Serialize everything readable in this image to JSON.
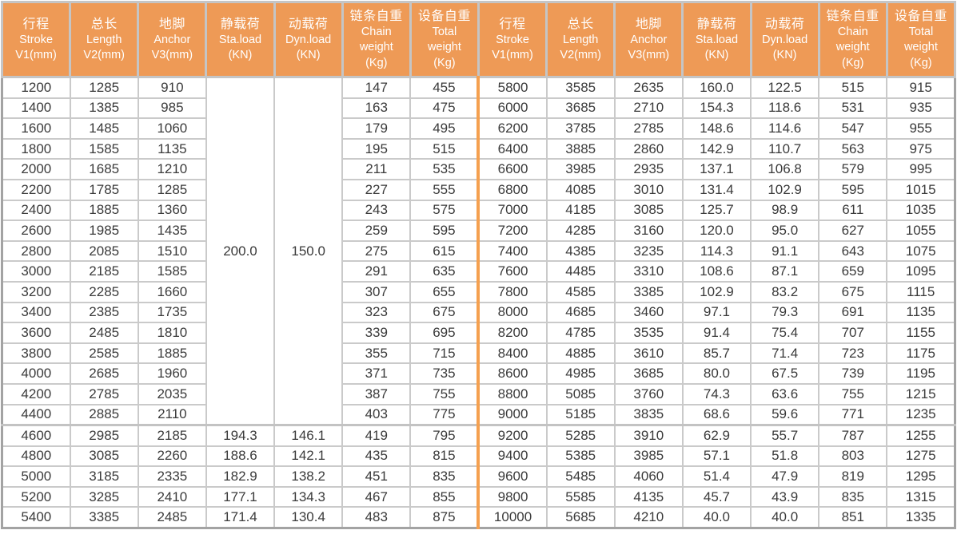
{
  "colors": {
    "header_background": "#EE9A56",
    "header_text": "#FFFFFF",
    "divider_orange": "#F5A04F",
    "cell_border_gray": "#CACACA",
    "outer_border_gray": "#A3A3A3",
    "body_text": "#3A3A3A"
  },
  "table": {
    "header": {
      "columns": [
        {
          "key": "stroke",
          "lines": [
            "行程",
            "Stroke",
            "V1(mm)"
          ]
        },
        {
          "key": "length",
          "lines": [
            "总长",
            "Length",
            "V2(mm)"
          ]
        },
        {
          "key": "anchor",
          "lines": [
            "地脚",
            "Anchor",
            "V3(mm)"
          ]
        },
        {
          "key": "sta-load",
          "lines": [
            "静载荷",
            "Sta.load",
            "(KN)"
          ]
        },
        {
          "key": "dyn-load",
          "lines": [
            "动载荷",
            "Dyn.load",
            "(KN)"
          ]
        },
        {
          "key": "chain-weight",
          "lines": [
            "链条自重",
            "Chain",
            "weight",
            "(Kg)"
          ]
        },
        {
          "key": "total-weight",
          "lines": [
            "设备自重",
            "Total",
            "weight",
            "(Kg)"
          ]
        }
      ]
    },
    "left": {
      "merged_span": 17,
      "merged_sta_load": "200.0",
      "merged_dyn_load": "150.0",
      "rows_merged": [
        [
          "1200",
          "1285",
          "910",
          "147",
          "455"
        ],
        [
          "1400",
          "1385",
          "985",
          "163",
          "475"
        ],
        [
          "1600",
          "1485",
          "1060",
          "179",
          "495"
        ],
        [
          "1800",
          "1585",
          "1135",
          "195",
          "515"
        ],
        [
          "2000",
          "1685",
          "1210",
          "211",
          "535"
        ],
        [
          "2200",
          "1785",
          "1285",
          "227",
          "555"
        ],
        [
          "2400",
          "1885",
          "1360",
          "243",
          "575"
        ],
        [
          "2600",
          "1985",
          "1435",
          "259",
          "595"
        ],
        [
          "2800",
          "2085",
          "1510",
          "275",
          "615"
        ],
        [
          "3000",
          "2185",
          "1585",
          "291",
          "635"
        ],
        [
          "3200",
          "2285",
          "1660",
          "307",
          "655"
        ],
        [
          "3400",
          "2385",
          "1735",
          "323",
          "675"
        ],
        [
          "3600",
          "2485",
          "1810",
          "339",
          "695"
        ],
        [
          "3800",
          "2585",
          "1885",
          "355",
          "715"
        ],
        [
          "4000",
          "2685",
          "1960",
          "371",
          "735"
        ],
        [
          "4200",
          "2785",
          "2035",
          "387",
          "755"
        ],
        [
          "4400",
          "2885",
          "2110",
          "403",
          "775"
        ]
      ],
      "rows_full": [
        [
          "4600",
          "2985",
          "2185",
          "194.3",
          "146.1",
          "419",
          "795"
        ],
        [
          "4800",
          "3085",
          "2260",
          "188.6",
          "142.1",
          "435",
          "815"
        ],
        [
          "5000",
          "3185",
          "2335",
          "182.9",
          "138.2",
          "451",
          "835"
        ],
        [
          "5200",
          "3285",
          "2410",
          "177.1",
          "134.3",
          "467",
          "855"
        ],
        [
          "5400",
          "3385",
          "2485",
          "171.4",
          "130.4",
          "483",
          "875"
        ]
      ]
    },
    "right": {
      "rows": [
        [
          "5800",
          "3585",
          "2635",
          "160.0",
          "122.5",
          "515",
          "915"
        ],
        [
          "6000",
          "3685",
          "2710",
          "154.3",
          "118.6",
          "531",
          "935"
        ],
        [
          "6200",
          "3785",
          "2785",
          "148.6",
          "114.6",
          "547",
          "955"
        ],
        [
          "6400",
          "3885",
          "2860",
          "142.9",
          "110.7",
          "563",
          "975"
        ],
        [
          "6600",
          "3985",
          "2935",
          "137.1",
          "106.8",
          "579",
          "995"
        ],
        [
          "6800",
          "4085",
          "3010",
          "131.4",
          "102.9",
          "595",
          "1015"
        ],
        [
          "7000",
          "4185",
          "3085",
          "125.7",
          "98.9",
          "611",
          "1035"
        ],
        [
          "7200",
          "4285",
          "3160",
          "120.0",
          "95.0",
          "627",
          "1055"
        ],
        [
          "7400",
          "4385",
          "3235",
          "114.3",
          "91.1",
          "643",
          "1075"
        ],
        [
          "7600",
          "4485",
          "3310",
          "108.6",
          "87.1",
          "659",
          "1095"
        ],
        [
          "7800",
          "4585",
          "3385",
          "102.9",
          "83.2",
          "675",
          "1115"
        ],
        [
          "8000",
          "4685",
          "3460",
          "97.1",
          "79.3",
          "691",
          "1135"
        ],
        [
          "8200",
          "4785",
          "3535",
          "91.4",
          "75.4",
          "707",
          "1155"
        ],
        [
          "8400",
          "4885",
          "3610",
          "85.7",
          "71.4",
          "723",
          "1175"
        ],
        [
          "8600",
          "4985",
          "3685",
          "80.0",
          "67.5",
          "739",
          "1195"
        ],
        [
          "8800",
          "5085",
          "3760",
          "74.3",
          "63.6",
          "755",
          "1215"
        ],
        [
          "9000",
          "5185",
          "3835",
          "68.6",
          "59.6",
          "771",
          "1235"
        ],
        [
          "9200",
          "5285",
          "3910",
          "62.9",
          "55.7",
          "787",
          "1255"
        ],
        [
          "9400",
          "5385",
          "3985",
          "57.1",
          "51.8",
          "803",
          "1275"
        ],
        [
          "9600",
          "5485",
          "4060",
          "51.4",
          "47.9",
          "819",
          "1295"
        ],
        [
          "9800",
          "5585",
          "4135",
          "45.7",
          "43.9",
          "835",
          "1315"
        ],
        [
          "10000",
          "5685",
          "4210",
          "40.0",
          "40.0",
          "851",
          "1335"
        ]
      ]
    }
  }
}
